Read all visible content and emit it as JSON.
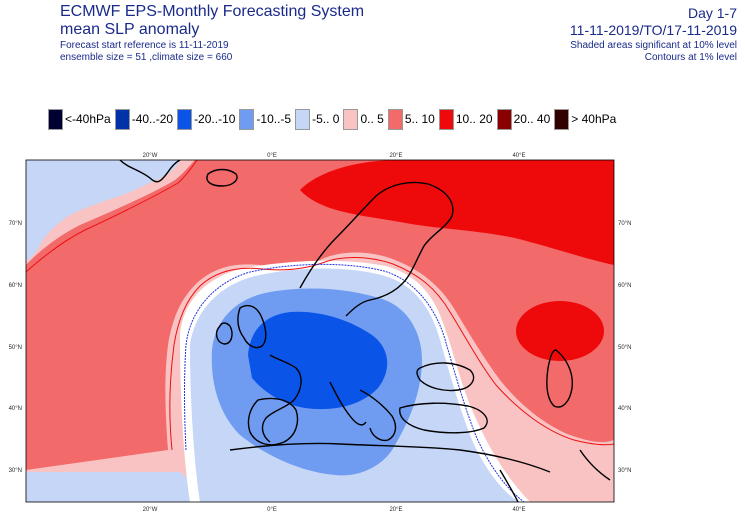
{
  "header": {
    "title_line1": "ECMWF EPS-Monthly Forecasting System",
    "title_line2": "mean SLP anomaly",
    "forecast_ref": "Forecast start reference is 11-11-2019",
    "ensemble": "ensemble size = 51  ,climate size = 660",
    "day_range": "Day 1-7",
    "date_range": "11-11-2019/TO/17-11-2019",
    "shaded_note": "Shaded areas significant at 10% level",
    "contour_note": "Contours at 1% level"
  },
  "legend": [
    {
      "label": "<-40hPa",
      "color": "#000033"
    },
    {
      "label": "-40..-20",
      "color": "#0033aa"
    },
    {
      "label": "-20..-10",
      "color": "#0a55e8"
    },
    {
      "label": "-10..-5",
      "color": "#6f9cf0"
    },
    {
      "label": "-5..  0",
      "color": "#c6d6f7"
    },
    {
      "label": "0..  5",
      "color": "#f9c3c3"
    },
    {
      "label": "5..  10",
      "color": "#f26a6a"
    },
    {
      "label": "10..  20",
      "color": "#ee0a0a"
    },
    {
      "label": "20..  40",
      "color": "#8a0000"
    },
    {
      "label": "> 40hPa",
      "color": "#330000"
    }
  ],
  "axes": {
    "lon_labels_top": [
      "20°W",
      "0°E",
      "20°E",
      "40°E"
    ],
    "lon_labels_bottom": [
      "20°W",
      "0°E",
      "20°E",
      "40°E"
    ],
    "lat_labels_left": [
      "70°N",
      "60°N",
      "50°N",
      "40°N",
      "30°N"
    ],
    "lat_labels_right": [
      "70°N",
      "60°N",
      "50°N",
      "40°N",
      "30°N"
    ]
  }
}
